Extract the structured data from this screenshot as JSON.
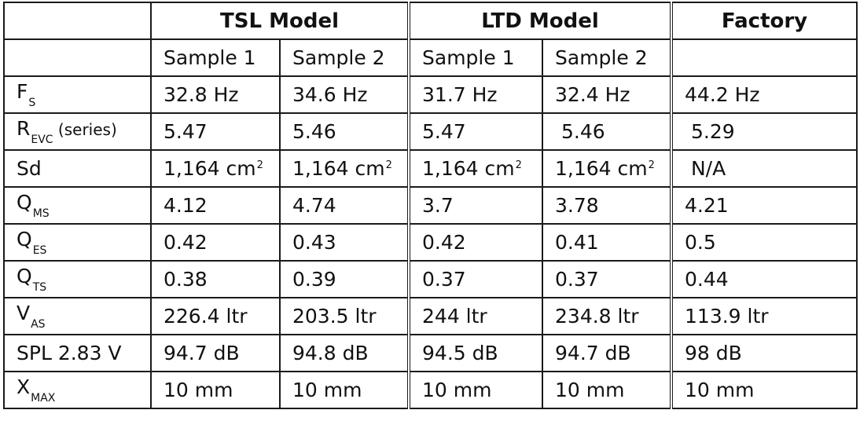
{
  "header": {
    "group1": "TSL Model",
    "group2": "LTD Model",
    "group3": "Factory",
    "samples": [
      "Sample 1",
      "Sample 2",
      "Sample 1",
      "Sample 2",
      ""
    ]
  },
  "rows": [
    {
      "label": "F",
      "sub": "S",
      "extra": "",
      "values": [
        "32.8 Hz",
        "34.6 Hz",
        "31.7 Hz",
        "32.4 Hz",
        "44.2 Hz"
      ]
    },
    {
      "label": "R",
      "sub": "EVC",
      "extra": " (series)",
      "values": [
        "5.47",
        "5.46",
        "5.47",
        " 5.46",
        " 5.29"
      ]
    },
    {
      "label": "Sd",
      "sub": "",
      "extra": "",
      "values": [
        "1,164 cm",
        "1,164 cm",
        "1,164 cm",
        "1,164 cm",
        " N/A"
      ],
      "sup": "2"
    },
    {
      "label": "Q",
      "sub": "MS",
      "extra": "",
      "values": [
        "4.12",
        "4.74",
        "3.7",
        "3.78",
        "4.21"
      ]
    },
    {
      "label": "Q",
      "sub": "ES",
      "extra": "",
      "values": [
        "0.42",
        "0.43",
        "0.42",
        "0.41",
        "0.5"
      ]
    },
    {
      "label": "Q",
      "sub": "TS",
      "extra": "",
      "values": [
        "0.38",
        "0.39",
        "0.37",
        "0.37",
        "0.44"
      ]
    },
    {
      "label": "V",
      "sub": "AS",
      "extra": "",
      "values": [
        "226.4 ltr",
        "203.5 ltr",
        "244 ltr",
        "234.8 ltr",
        "113.9 ltr"
      ]
    },
    {
      "label": "SPL 2.83 V",
      "sub": "",
      "extra": "",
      "values": [
        "94.7 dB",
        "94.8 dB",
        "94.5 dB",
        "94.7 dB",
        "98 dB"
      ]
    },
    {
      "label": "X",
      "sub": "MAX",
      "extra": "",
      "values": [
        "10 mm",
        "10 mm",
        "10 mm",
        "10 mm",
        "10 mm"
      ]
    }
  ]
}
